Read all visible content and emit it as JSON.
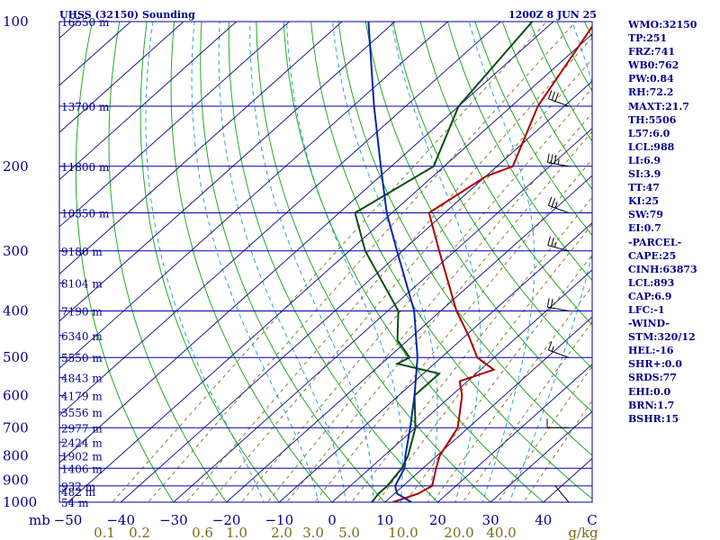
{
  "header": {
    "station": "UHSS (32150) Sounding",
    "time": "1200Z  8 JUN 25"
  },
  "colors": {
    "isobar": "#0000aa",
    "frame": "#00008b",
    "isotherm": "#1e1e8c",
    "dry_adiabat": "#22aa22",
    "moist_adiabat": "#2aa2d8",
    "mixing_ratio": "#8b7a3a",
    "temperature": "#b00000",
    "dewpoint": "#0b4d12",
    "parcel": "#0a26a6",
    "wind_barb": "#000000",
    "unit_text": "#00008b",
    "mixing_text": "#7a6a14"
  },
  "chart_data": {
    "type": "skew-t",
    "pressure_axis": {
      "unit": "mb",
      "ticks": [
        100,
        200,
        300,
        400,
        500,
        600,
        700,
        800,
        900,
        1000
      ],
      "log": true,
      "range": [
        1000,
        100
      ]
    },
    "isobar_levels": [
      1000,
      925,
      850,
      700,
      500,
      400,
      300,
      250,
      200,
      150,
      100
    ],
    "height_labels": [
      {
        "p": 1000,
        "text": "54 m"
      },
      {
        "p": 950,
        "text": "482 m"
      },
      {
        "p": 925,
        "text": "932 m"
      },
      {
        "p": 850,
        "text": "1406 m"
      },
      {
        "p": 800,
        "text": "1902 m"
      },
      {
        "p": 750,
        "text": "2424 m"
      },
      {
        "p": 700,
        "text": "2977 m"
      },
      {
        "p": 650,
        "text": "3556 m"
      },
      {
        "p": 600,
        "text": "4179 m"
      },
      {
        "p": 550,
        "text": "4843 m"
      },
      {
        "p": 500,
        "text": "5550 m"
      },
      {
        "p": 450,
        "text": "6340 m"
      },
      {
        "p": 400,
        "text": "7190 m"
      },
      {
        "p": 350,
        "text": "8104 m"
      },
      {
        "p": 300,
        "text": "9180 m"
      },
      {
        "p": 250,
        "text": "10350 m"
      },
      {
        "p": 200,
        "text": "11800 m"
      },
      {
        "p": 150,
        "text": "13700 m"
      },
      {
        "p": 100,
        "text": "16550 m"
      }
    ],
    "temperature_axis": {
      "unit": "C",
      "ticks": [
        -50,
        -40,
        -30,
        -20,
        -10,
        0,
        10,
        20,
        30,
        40
      ],
      "range": [
        -50,
        50
      ]
    },
    "mixing_ratio_axis": {
      "unit": "g/kg",
      "ticks": [
        "0.1",
        "0.2",
        "0.6",
        "1.0",
        "2.0",
        "3.0",
        "5.0",
        "10.0",
        "20.0",
        "40.0"
      ]
    },
    "dry_adiabats_theta_c": [
      -30,
      -20,
      -10,
      0,
      10,
      20,
      30,
      40,
      50,
      60,
      70,
      80,
      90,
      100,
      110,
      120,
      130,
      140,
      150,
      160,
      170,
      180,
      190
    ],
    "moist_adiabats_c": [
      -10,
      0,
      5,
      10,
      15,
      20,
      25,
      30,
      35
    ],
    "series": [
      {
        "name": "temperature",
        "points": [
          {
            "p": 1000,
            "t": 11.5
          },
          {
            "p": 960,
            "t": 14.5
          },
          {
            "p": 925,
            "t": 15.5
          },
          {
            "p": 850,
            "t": 12.5
          },
          {
            "p": 800,
            "t": 10.5
          },
          {
            "p": 700,
            "t": 8.0
          },
          {
            "p": 600,
            "t": 2.0
          },
          {
            "p": 560,
            "t": -1.5
          },
          {
            "p": 530,
            "t": 2.5
          },
          {
            "p": 500,
            "t": -3.2
          },
          {
            "p": 450,
            "t": -9.5
          },
          {
            "p": 400,
            "t": -17.0
          },
          {
            "p": 300,
            "t": -33.0
          },
          {
            "p": 250,
            "t": -43.0
          },
          {
            "p": 210,
            "t": -40.0
          },
          {
            "p": 200,
            "t": -37.0
          },
          {
            "p": 150,
            "t": -45.0
          },
          {
            "p": 100,
            "t": -52.0
          }
        ]
      },
      {
        "name": "dewpoint",
        "points": [
          {
            "p": 1000,
            "t": 7.5
          },
          {
            "p": 960,
            "t": 7.0
          },
          {
            "p": 925,
            "t": 7.0
          },
          {
            "p": 850,
            "t": 6.0
          },
          {
            "p": 800,
            "t": 4.5
          },
          {
            "p": 700,
            "t": 0.0
          },
          {
            "p": 600,
            "t": -7.0
          },
          {
            "p": 540,
            "t": -7.0
          },
          {
            "p": 515,
            "t": -17.0
          },
          {
            "p": 500,
            "t": -16.0
          },
          {
            "p": 460,
            "t": -22.0
          },
          {
            "p": 400,
            "t": -28.0
          },
          {
            "p": 300,
            "t": -47.0
          },
          {
            "p": 250,
            "t": -57.0
          },
          {
            "p": 200,
            "t": -52.0
          },
          {
            "p": 150,
            "t": -60.0
          },
          {
            "p": 100,
            "t": -64.0
          }
        ]
      },
      {
        "name": "parcel",
        "points": [
          {
            "p": 1000,
            "t": 15.0
          },
          {
            "p": 960,
            "t": 10.5
          },
          {
            "p": 925,
            "t": 8.5
          },
          {
            "p": 850,
            "t": 6.5
          },
          {
            "p": 800,
            "t": 4.0
          },
          {
            "p": 700,
            "t": -1.0
          },
          {
            "p": 600,
            "t": -7.0
          },
          {
            "p": 500,
            "t": -14.5
          },
          {
            "p": 400,
            "t": -25.0
          },
          {
            "p": 300,
            "t": -41.0
          },
          {
            "p": 250,
            "t": -51.0
          },
          {
            "p": 200,
            "t": -62.0
          },
          {
            "p": 150,
            "t": -76.0
          },
          {
            "p": 100,
            "t": -95.0
          }
        ]
      }
    ],
    "wind_barbs": [
      {
        "p": 1000,
        "dir": 320,
        "spd": 3
      },
      {
        "p": 700,
        "dir": 270,
        "spd": 10
      },
      {
        "p": 500,
        "dir": 290,
        "spd": 15
      },
      {
        "p": 400,
        "dir": 280,
        "spd": 20
      },
      {
        "p": 300,
        "dir": 285,
        "spd": 25
      },
      {
        "p": 250,
        "dir": 290,
        "spd": 25
      },
      {
        "p": 200,
        "dir": 280,
        "spd": 35
      },
      {
        "p": 150,
        "dir": 290,
        "spd": 30
      },
      {
        "p": 100,
        "dir": 315,
        "spd": 10
      }
    ]
  },
  "indices": [
    "WMO:32150",
    "TP:251",
    "FRZ:741",
    "WB0:762",
    "PW:0.84",
    "RH:72.2",
    "MAXT:21.7",
    "TH:5506",
    "L57:6.0",
    "LCL:988",
    "LI:6.9",
    "SI:3.9",
    "TT:47",
    "KI:25",
    "SW:79",
    "EI:0.7",
    "-PARCEL-",
    "CAPE:25",
    "CINH:63873",
    "LCL:893",
    "CAP:6.9",
    "LFC:-1",
    "-WIND-",
    "STM:320/12",
    "HEL:-16",
    "SHR+:0.0",
    "SRDS:77",
    "EHI:0.0",
    "BRN:1.7",
    "BSHR:15"
  ]
}
